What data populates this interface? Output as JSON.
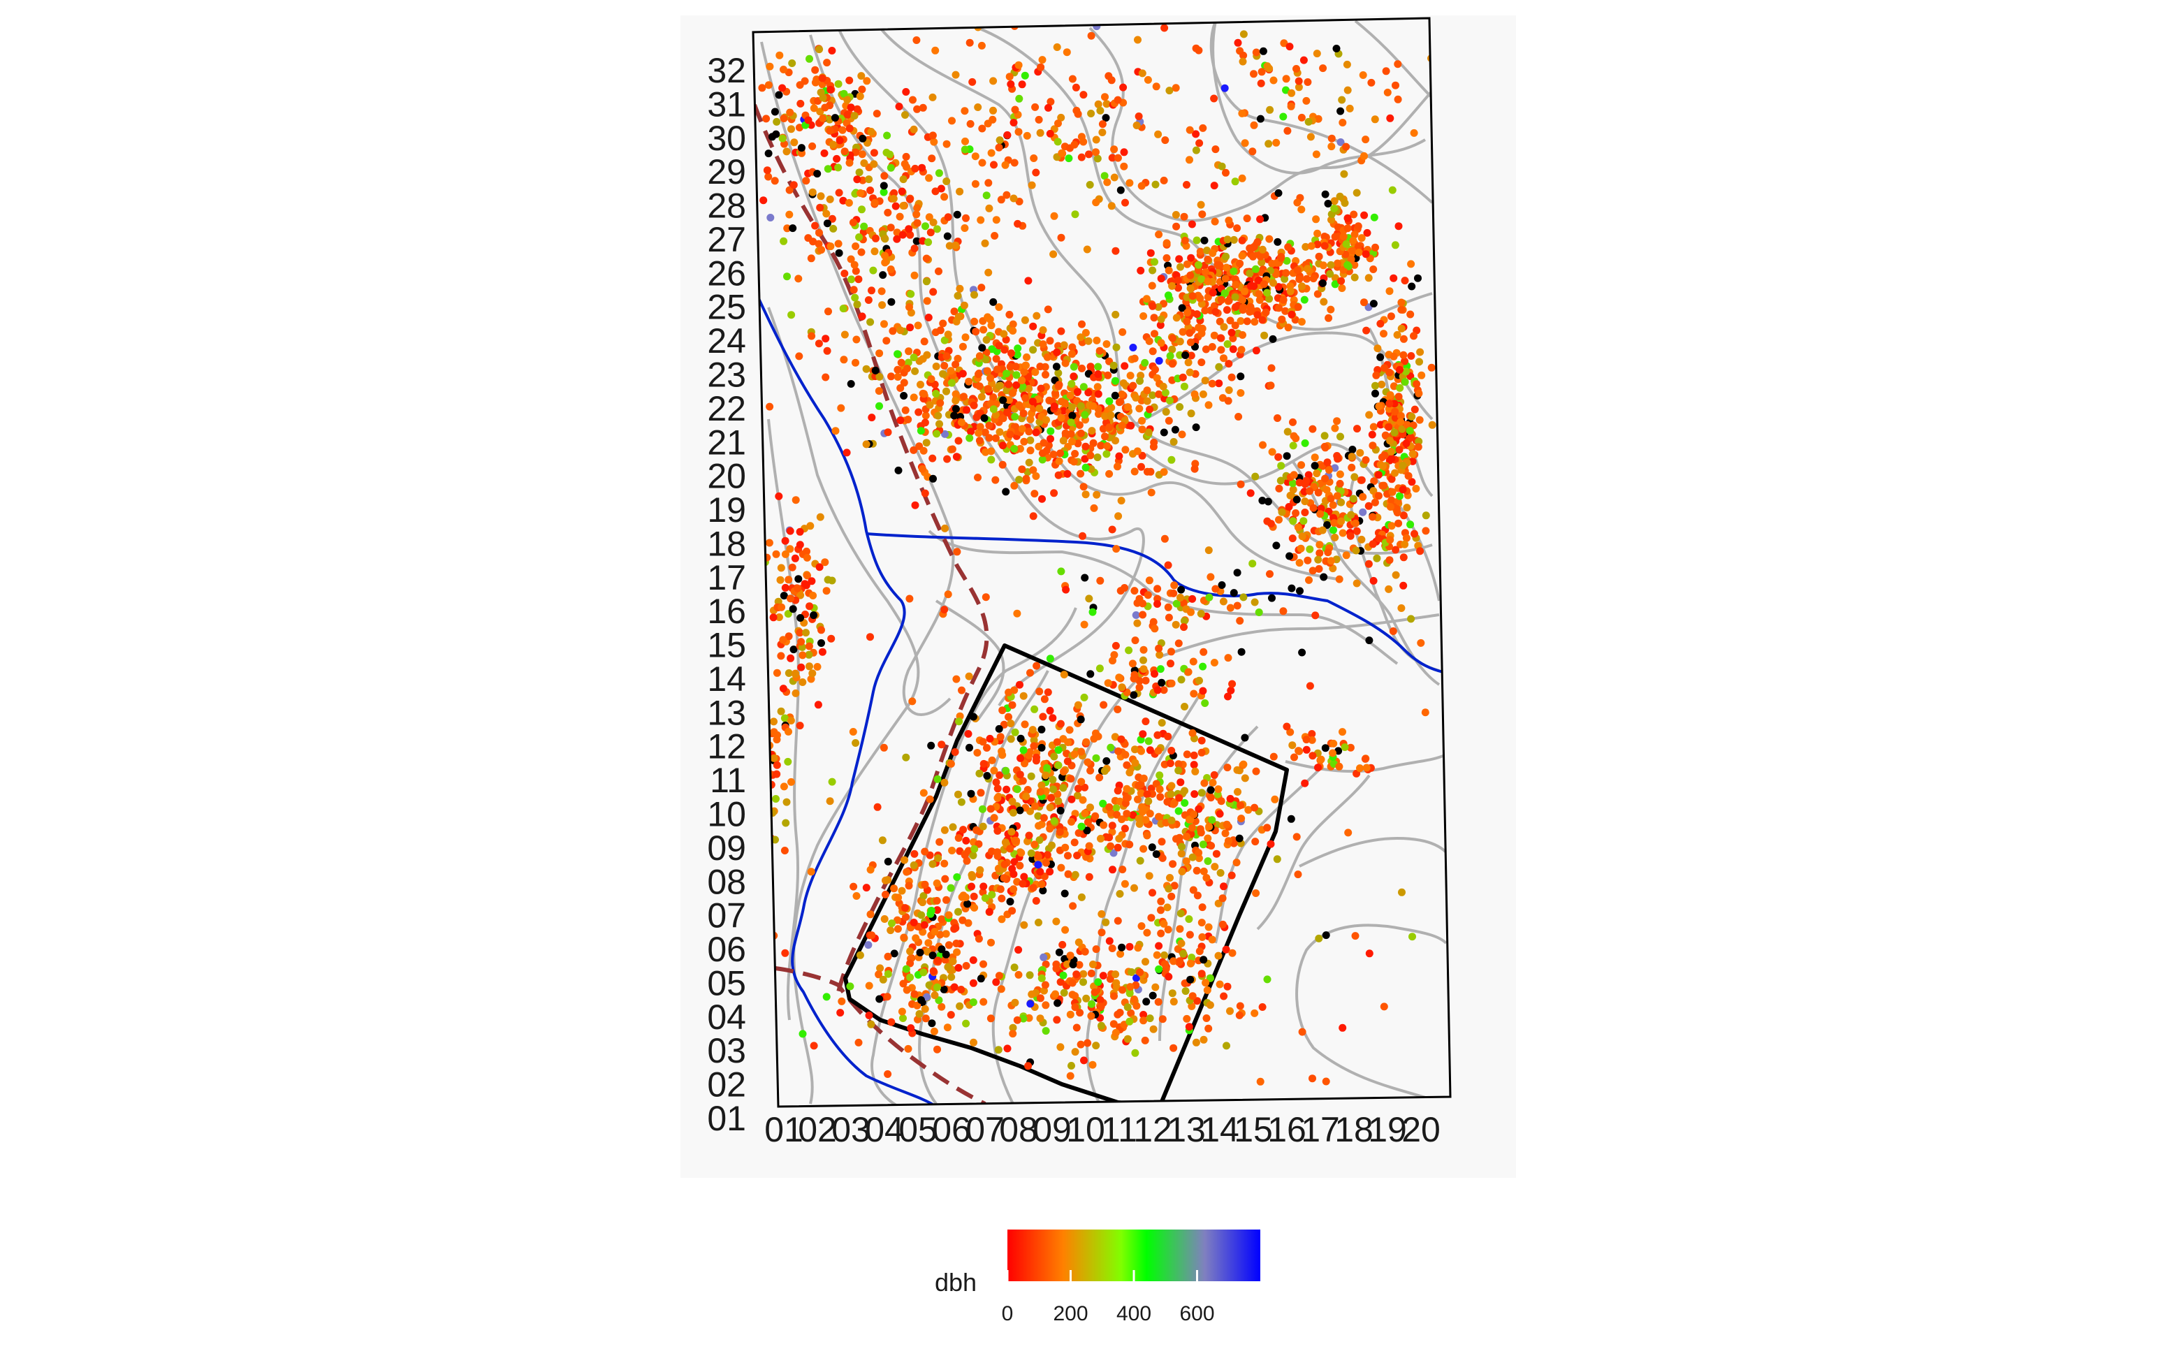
{
  "chart_data": {
    "type": "scatter",
    "title": "",
    "xlabel": "",
    "ylabel": "",
    "x_ticks": [
      "01",
      "02",
      "03",
      "04",
      "05",
      "06",
      "07",
      "08",
      "09",
      "10",
      "11",
      "12",
      "13",
      "14",
      "15",
      "16",
      "17",
      "18",
      "19",
      "20"
    ],
    "y_ticks": [
      "01",
      "02",
      "03",
      "04",
      "05",
      "06",
      "07",
      "08",
      "09",
      "10",
      "11",
      "12",
      "13",
      "14",
      "15",
      "16",
      "17",
      "18",
      "19",
      "20",
      "21",
      "22",
      "23",
      "24",
      "25",
      "26",
      "27",
      "28",
      "29",
      "30",
      "31",
      "32"
    ],
    "grid": false,
    "legend": {
      "title": "dbh",
      "position": "bottom",
      "ticks": [
        0,
        200,
        400,
        600
      ],
      "range": [
        0,
        800
      ],
      "colors": [
        "#ff0000",
        "#ff8000",
        "#80ff00",
        "#00ff00",
        "#8080c0",
        "#0000ff"
      ]
    },
    "colors": {
      "large_tree": "#000000",
      "stream": "#0022cc",
      "contour": "#b0b0b0",
      "trail": "#993333",
      "subplot_boundary": "#000000",
      "panel_background": "#f8f8f8"
    }
  }
}
